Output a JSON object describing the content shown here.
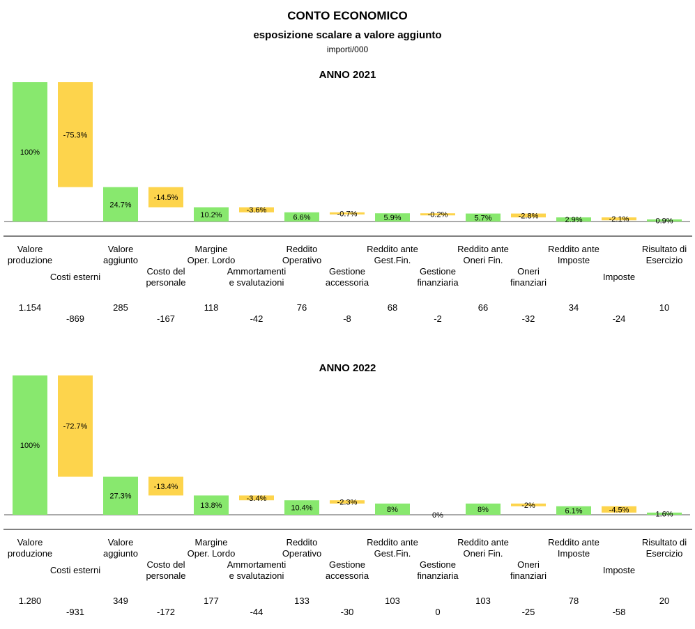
{
  "title": "CONTO ECONOMICO",
  "subtitle": "esposizione scalare a valore aggiunto",
  "unit_note": "importi/000",
  "colors": {
    "positive": "#88e86e",
    "negative": "#fdd44c",
    "baseline": "#555555",
    "axis": "#000000"
  },
  "categories": [
    [
      "Valore",
      "produzione"
    ],
    [
      "Costi esterni"
    ],
    [
      "Valore",
      "aggiunto"
    ],
    [
      "Costo del",
      "personale"
    ],
    [
      "Margine",
      "Oper. Lordo"
    ],
    [
      "Ammortamenti",
      "e svalutazioni"
    ],
    [
      "Reddito",
      "Operativo"
    ],
    [
      "Gestione",
      "accessoria"
    ],
    [
      "Reddito ante",
      "Gest.Fin."
    ],
    [
      "Gestione",
      "finanziaria"
    ],
    [
      "Reddito ante",
      "Oneri Fin."
    ],
    [
      "Oneri",
      "finanziari"
    ],
    [
      "Reddito ante",
      "Imposte"
    ],
    [
      "Imposte"
    ],
    [
      "Risultato di",
      "Esercizio"
    ]
  ],
  "chart_data": [
    {
      "type": "bar",
      "title": "ANNO 2021",
      "series": [
        {
          "values": [
            1154,
            -869,
            285,
            -167,
            118,
            -42,
            76,
            -8,
            68,
            -2,
            66,
            -32,
            34,
            -24,
            10
          ]
        }
      ],
      "value_labels": [
        "1.154",
        "-869",
        "285",
        "-167",
        "118",
        "-42",
        "76",
        "-8",
        "68",
        "-2",
        "66",
        "-32",
        "34",
        "-24",
        "10"
      ],
      "percent_labels": [
        "100%",
        "-75.3%",
        "24.7%",
        "-14.5%",
        "10.2%",
        "-3.6%",
        "6.6%",
        "-0.7%",
        "5.9%",
        "-0.2%",
        "5.7%",
        "-2.8%",
        "2.9%",
        "-2.1%",
        "0.9%"
      ]
    },
    {
      "type": "bar",
      "title": "ANNO 2022",
      "series": [
        {
          "values": [
            1280,
            -931,
            349,
            -172,
            177,
            -44,
            133,
            -30,
            103,
            0,
            103,
            -25,
            78,
            -58,
            20
          ]
        }
      ],
      "value_labels": [
        "1.280",
        "-931",
        "349",
        "-172",
        "177",
        "-44",
        "133",
        "-30",
        "103",
        "0",
        "103",
        "-25",
        "78",
        "-58",
        "20"
      ],
      "percent_labels": [
        "100%",
        "-72.7%",
        "27.3%",
        "-13.4%",
        "13.8%",
        "-3.4%",
        "10.4%",
        "-2.3%",
        "8%",
        "0%",
        "8%",
        "-2%",
        "6.1%",
        "-4.5%",
        "1.6%"
      ]
    }
  ]
}
